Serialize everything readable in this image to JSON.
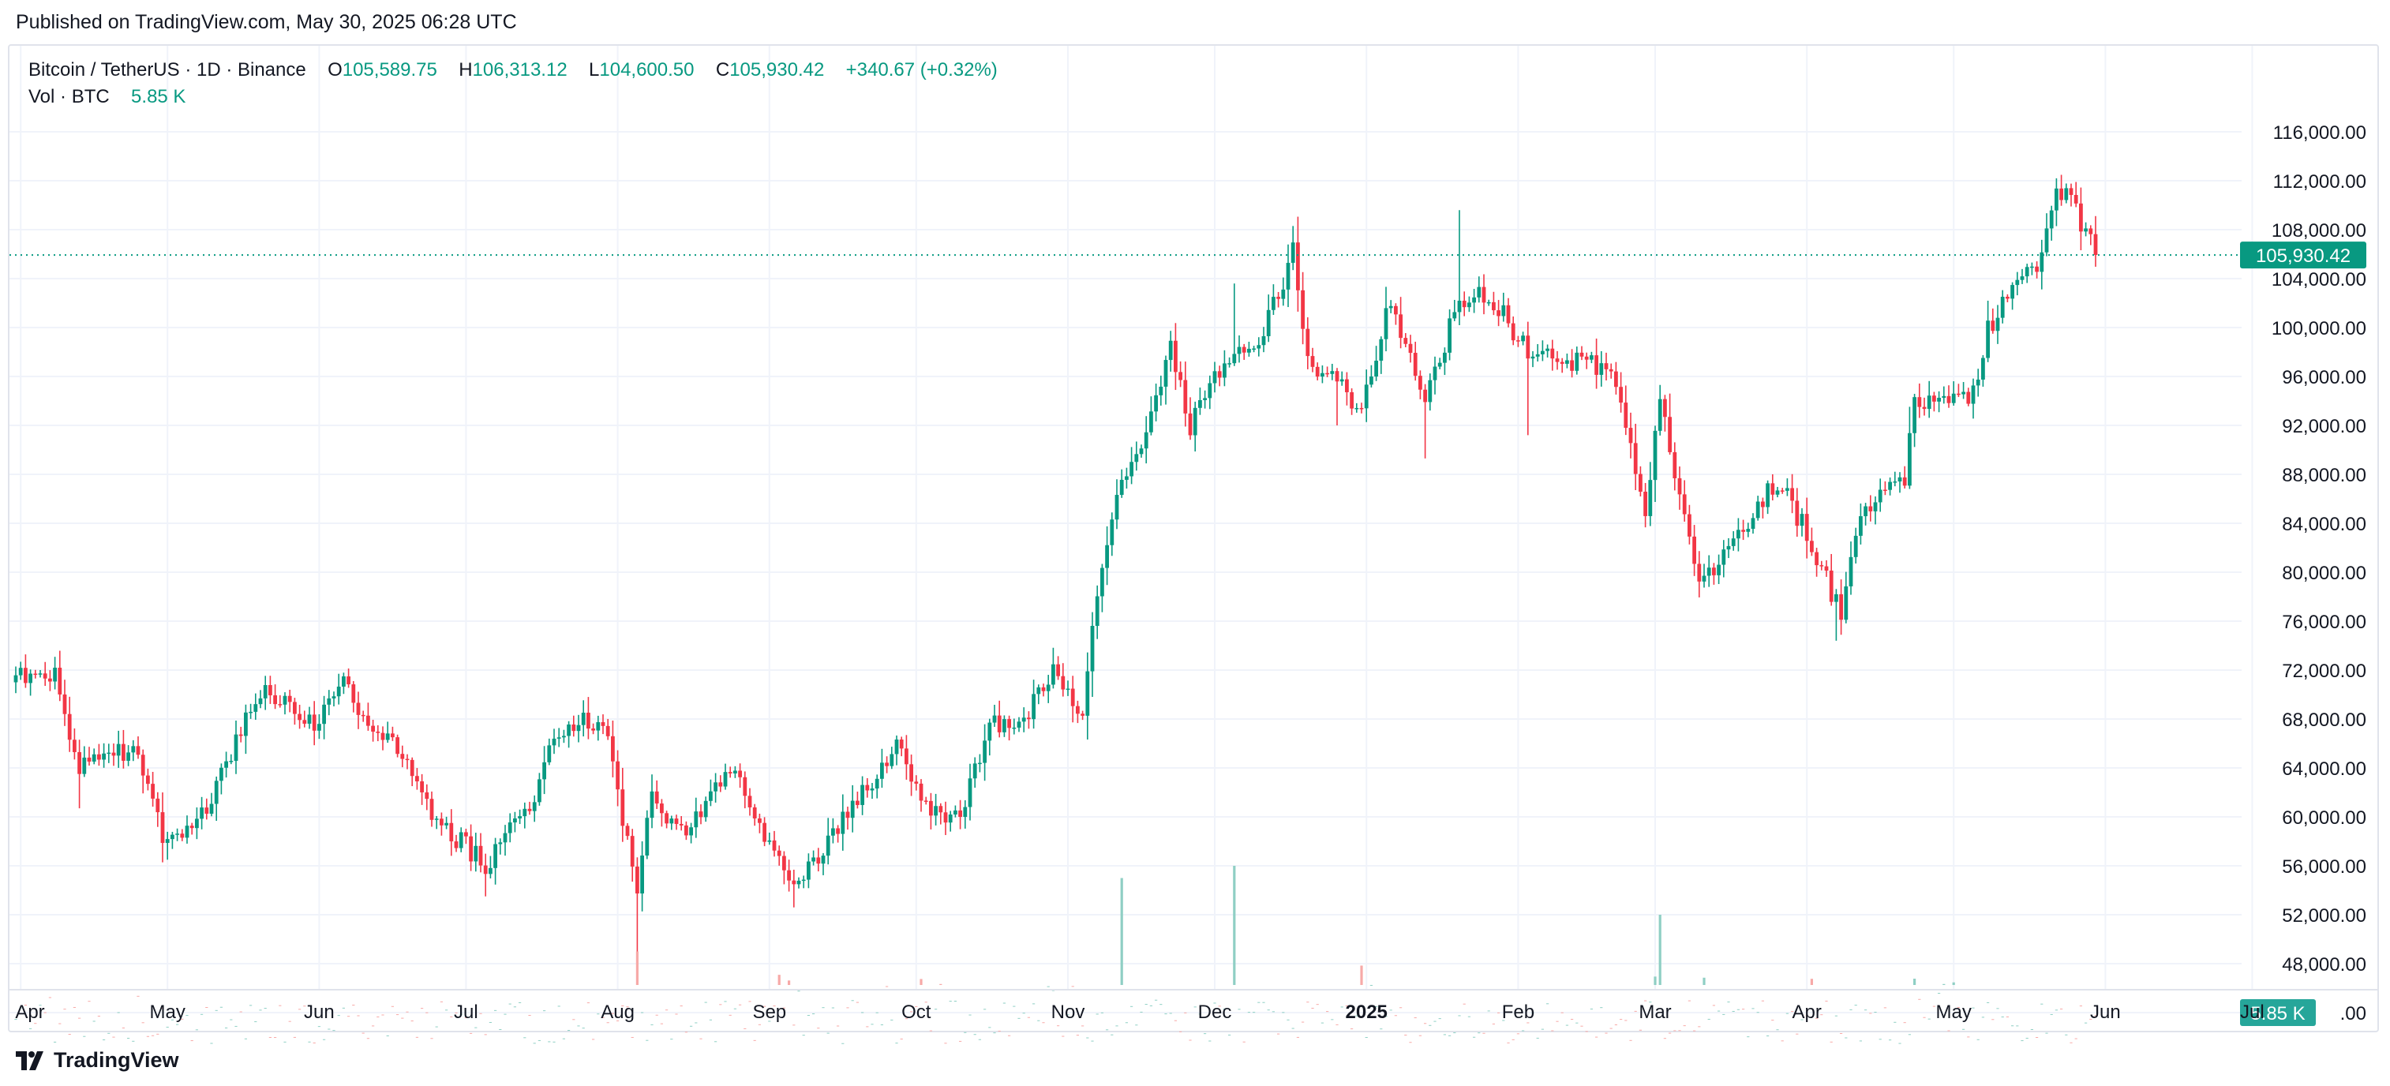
{
  "header": {
    "published": "Published on TradingView.com, May 30, 2025 06:28 UTC"
  },
  "legend": {
    "symbol": "Bitcoin / TetherUS · 1D · Binance",
    "open_label": "O",
    "open": "105,589.75",
    "high_label": "H",
    "high": "106,313.12",
    "low_label": "L",
    "low": "104,600.50",
    "close_label": "C",
    "close": "105,930.42",
    "change": "+340.67 (+0.32%)",
    "vol_label": "Vol · BTC",
    "vol_value": "5.85 K"
  },
  "footer": {
    "brand": "TradingView",
    "logo_icon": "tradingview-logo-icon"
  },
  "colors": {
    "up": "#089981",
    "down": "#f23645",
    "vol_up": "#8fcfc4",
    "vol_down": "#f7a9a7",
    "grid": "#f0f3fa",
    "text": "#131722"
  },
  "chart_data": {
    "type": "candlestick",
    "price_axis": {
      "ticks": [
        48000,
        52000,
        56000,
        60000,
        64000,
        68000,
        72000,
        76000,
        80000,
        84000,
        88000,
        92000,
        96000,
        100000,
        104000,
        108000,
        112000,
        116000
      ],
      "tick_labels": [
        "48,000.00",
        "52,000.00",
        "56,000.00",
        "60,000.00",
        "64,000.00",
        "68,000.00",
        "72,000.00",
        "76,000.00",
        "80,000.00",
        "84,000.00",
        "88,000.00",
        "92,000.00",
        "96,000.00",
        "100,000.00",
        "104,000.00",
        "108,000.00",
        "112,000.00",
        "116,000.00"
      ],
      "partial_label": ".00",
      "last_price": 105930.42,
      "last_price_label": "105,930.42",
      "volume_badge": "5.85 K"
    },
    "time_axis": {
      "labels": [
        "Apr",
        "May",
        "Jun",
        "Jul",
        "Aug",
        "Sep",
        "Oct",
        "Nov",
        "Dec",
        "2025",
        "Feb",
        "Mar",
        "Apr",
        "May",
        "Jun",
        "Jul"
      ],
      "label_dates": [
        "2024-04-01",
        "2024-05-01",
        "2024-06-01",
        "2024-07-01",
        "2024-08-01",
        "2024-09-01",
        "2024-10-01",
        "2024-11-01",
        "2024-12-01",
        "2025-01-01",
        "2025-02-01",
        "2025-03-01",
        "2025-04-01",
        "2025-05-01",
        "2025-06-01",
        "2025-07-01"
      ],
      "bold": [
        "2025"
      ],
      "start_date": "2024-03-31",
      "last_date": "2025-05-30"
    },
    "price_path": [
      [
        "2024-03-31",
        71300
      ],
      [
        "2024-04-08",
        71500
      ],
      [
        "2024-04-13",
        64000
      ],
      [
        "2024-04-19",
        64500
      ],
      [
        "2024-04-24",
        66000
      ],
      [
        "2024-05-01",
        57500
      ],
      [
        "2024-05-09",
        61000
      ],
      [
        "2024-05-15",
        66200
      ],
      [
        "2024-05-21",
        70500
      ],
      [
        "2024-05-31",
        67500
      ],
      [
        "2024-06-06",
        71000
      ],
      [
        "2024-06-12",
        67300
      ],
      [
        "2024-06-18",
        65000
      ],
      [
        "2024-06-24",
        60300
      ],
      [
        "2024-07-05",
        56000
      ],
      [
        "2024-07-14",
        60800
      ],
      [
        "2024-07-20",
        67100
      ],
      [
        "2024-07-29",
        68200
      ],
      [
        "2024-08-05",
        54000
      ],
      [
        "2024-08-08",
        61700
      ],
      [
        "2024-08-14",
        58700
      ],
      [
        "2024-08-24",
        64100
      ],
      [
        "2024-09-01",
        57300
      ],
      [
        "2024-09-06",
        53900
      ],
      [
        "2024-09-15",
        59200
      ],
      [
        "2024-09-27",
        65800
      ],
      [
        "2024-10-03",
        60700
      ],
      [
        "2024-10-10",
        60200
      ],
      [
        "2024-10-16",
        67600
      ],
      [
        "2024-10-22",
        67300
      ],
      [
        "2024-10-29",
        72300
      ],
      [
        "2024-11-04",
        67800
      ],
      [
        "2024-11-06",
        75900
      ],
      [
        "2024-11-12",
        88000
      ],
      [
        "2024-11-16",
        90600
      ],
      [
        "2024-11-22",
        98400
      ],
      [
        "2024-11-26",
        91900
      ],
      [
        "2024-12-05",
        98500
      ],
      [
        "2024-12-09",
        97400
      ],
      [
        "2024-12-17",
        106100
      ],
      [
        "2024-12-20",
        97200
      ],
      [
        "2024-12-26",
        95800
      ],
      [
        "2024-12-30",
        92700
      ],
      [
        "2025-01-06",
        102200
      ],
      [
        "2025-01-13",
        94500
      ],
      [
        "2025-01-20",
        102000
      ],
      [
        "2025-01-26",
        102700
      ],
      [
        "2025-02-03",
        98000
      ],
      [
        "2025-02-10",
        97500
      ],
      [
        "2025-02-20",
        96600
      ],
      [
        "2025-02-27",
        84600
      ],
      [
        "2025-03-02",
        94200
      ],
      [
        "2025-03-10",
        78600
      ],
      [
        "2025-03-20",
        84200
      ],
      [
        "2025-03-26",
        87500
      ],
      [
        "2025-04-02",
        82500
      ],
      [
        "2025-04-08",
        76300
      ],
      [
        "2025-04-12",
        85300
      ],
      [
        "2025-04-21",
        87500
      ],
      [
        "2025-04-23",
        93700
      ],
      [
        "2025-05-05",
        94700
      ],
      [
        "2025-05-08",
        99700
      ],
      [
        "2025-05-13",
        104000
      ],
      [
        "2025-05-19",
        105600
      ],
      [
        "2025-05-22",
        111700
      ],
      [
        "2025-05-26",
        109400
      ],
      [
        "2025-05-30",
        105930
      ]
    ],
    "spikes": [
      [
        "2024-04-13",
        60700,
        "low"
      ],
      [
        "2024-05-01",
        56500,
        "low"
      ],
      [
        "2024-07-05",
        53500,
        "low"
      ],
      [
        "2024-08-05",
        49000,
        "low"
      ],
      [
        "2024-09-06",
        52600,
        "low"
      ],
      [
        "2024-10-29",
        73500,
        "high"
      ],
      [
        "2024-12-05",
        103600,
        "high"
      ],
      [
        "2024-12-17",
        108300,
        "high"
      ],
      [
        "2024-12-26",
        92000,
        "low"
      ],
      [
        "2025-01-13",
        89300,
        "low"
      ],
      [
        "2025-01-20",
        109600,
        "high"
      ],
      [
        "2025-02-03",
        91200,
        "low"
      ],
      [
        "2025-03-02",
        94900,
        "high"
      ],
      [
        "2025-03-10",
        78000,
        "low"
      ],
      [
        "2025-04-07",
        74400,
        "low"
      ],
      [
        "2025-05-22",
        111900,
        "high"
      ]
    ],
    "volume_peaks": [
      [
        "2024-11-12",
        55000
      ],
      [
        "2024-12-05",
        56000
      ],
      [
        "2025-03-02",
        52000
      ],
      [
        "2024-08-05",
        49000
      ]
    ],
    "grid": true
  }
}
